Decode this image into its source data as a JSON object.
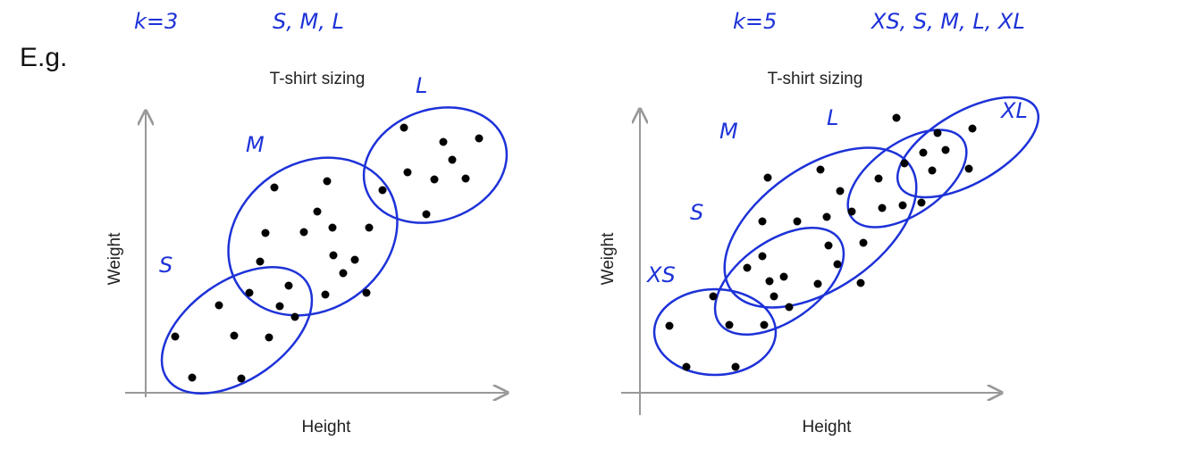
{
  "header": {
    "left": {
      "k": "k=3",
      "sizes": "S, M, L"
    },
    "right": {
      "k": "k=5",
      "sizes": "XS, S, M, L, XL"
    }
  },
  "example_label": "E.g.",
  "plots": [
    {
      "title": "T-shirt sizing",
      "x_label": "Height",
      "y_label": "Weight",
      "clusters": [
        "S",
        "M",
        "L"
      ]
    },
    {
      "title": "T-shirt sizing",
      "x_label": "Height",
      "y_label": "Weight",
      "clusters": [
        "XS",
        "S",
        "M",
        "L",
        "XL"
      ]
    }
  ]
}
